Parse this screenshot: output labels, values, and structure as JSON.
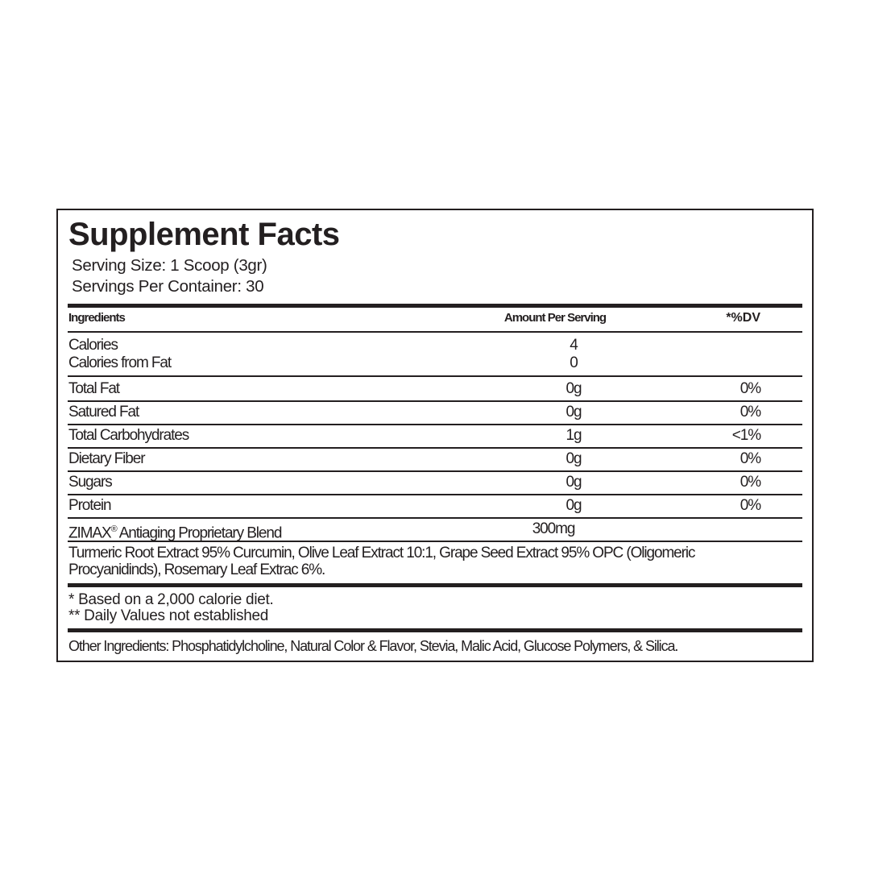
{
  "title": "Supplement Facts",
  "serving_size": "Serving Size: 1 Scoop (3gr)",
  "servings_per_container": "Servings Per Container: 30",
  "headers": {
    "ingredients": "Ingredients",
    "amount": "Amount Per Serving",
    "dv": "*%DV"
  },
  "calories": [
    {
      "label": "Calories",
      "amount": "4",
      "dv": ""
    },
    {
      "label": "Calories from Fat",
      "amount": "0",
      "dv": ""
    }
  ],
  "rows": [
    {
      "label": "Total Fat",
      "amount": "0g",
      "dv": "0%"
    },
    {
      "label": "Satured Fat",
      "amount": "0g",
      "dv": "0%"
    },
    {
      "label": "Total Carbohydrates",
      "amount": "1g",
      "dv": "<1%"
    },
    {
      "label": "Dietary Fiber",
      "amount": "0g",
      "dv": "0%"
    },
    {
      "label": "Sugars",
      "amount": "0g",
      "dv": "0%"
    },
    {
      "label": "Protein",
      "amount": "0g",
      "dv": "0%"
    }
  ],
  "blend": {
    "brand": "ZIMAX",
    "mark": "®",
    "label": " Antiaging Proprietary Blend",
    "amount": "300mg"
  },
  "blend_ingredients": [
    "Turmeric Root Extract 95% Curcumin, Olive Leaf Extract 10:1, Grape Seed Extract 95% OPC (Oligomeric",
    "Procyanidinds), Rosemary Leaf Extrac 6%."
  ],
  "footnotes": [
    "* Based on a 2,000 calorie diet.",
    "** Daily Values not established"
  ],
  "other_ingredients": "Other Ingredients: Phosphatidylcholine, Natural Color & Flavor, Stevia, Malic Acid, Glucose Polymers, & Silica."
}
